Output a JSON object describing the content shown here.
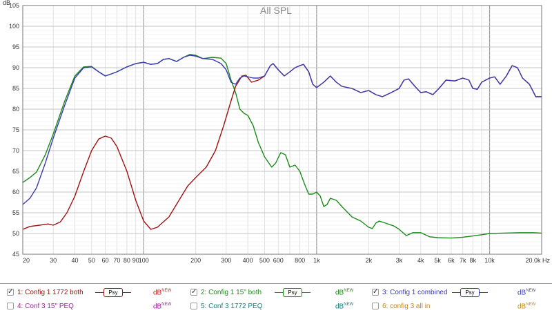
{
  "chart_data": {
    "type": "line",
    "title": "All SPL",
    "ylabel": "dB",
    "xlabel": "Hz",
    "x_scale": "log",
    "xlim": [
      20,
      20000
    ],
    "ylim": [
      45,
      105
    ],
    "x_ticks": [
      {
        "v": 20,
        "t": "20"
      },
      {
        "v": 30,
        "t": "30"
      },
      {
        "v": 40,
        "t": "40"
      },
      {
        "v": 50,
        "t": "50"
      },
      {
        "v": 60,
        "t": "60"
      },
      {
        "v": 70,
        "t": "70"
      },
      {
        "v": 80,
        "t": "80"
      },
      {
        "v": 90,
        "t": "90"
      },
      {
        "v": 100,
        "t": "100"
      },
      {
        "v": 200,
        "t": "200"
      },
      {
        "v": 300,
        "t": "300"
      },
      {
        "v": 400,
        "t": "400"
      },
      {
        "v": 500,
        "t": "500"
      },
      {
        "v": 600,
        "t": "600"
      },
      {
        "v": 800,
        "t": "800"
      },
      {
        "v": 1000,
        "t": "1k"
      },
      {
        "v": 2000,
        "t": "2k"
      },
      {
        "v": 3000,
        "t": "3k"
      },
      {
        "v": 4000,
        "t": "4k"
      },
      {
        "v": 5000,
        "t": "5k"
      },
      {
        "v": 6000,
        "t": "6k"
      },
      {
        "v": 7000,
        "t": "7k"
      },
      {
        "v": 8000,
        "t": "8k"
      },
      {
        "v": 10000,
        "t": "10k"
      },
      {
        "v": 20000,
        "t": "20.0k Hz"
      }
    ],
    "y_ticks": [
      "45",
      "50",
      "55",
      "60",
      "65",
      "70",
      "75",
      "80",
      "85",
      "90",
      "95",
      "100",
      "105"
    ],
    "grid": true,
    "series": [
      {
        "name": "Config 1 1772 both",
        "color": "#a01010",
        "points": [
          [
            20,
            51.0
          ],
          [
            22,
            51.7
          ],
          [
            25,
            52.0
          ],
          [
            28,
            52.3
          ],
          [
            30,
            52.0
          ],
          [
            33,
            52.8
          ],
          [
            36,
            55
          ],
          [
            40,
            59
          ],
          [
            45,
            65
          ],
          [
            50,
            70
          ],
          [
            55,
            72.8
          ],
          [
            60,
            73.5
          ],
          [
            65,
            73
          ],
          [
            70,
            71
          ],
          [
            80,
            65
          ],
          [
            90,
            58
          ],
          [
            100,
            53
          ],
          [
            110,
            51
          ],
          [
            120,
            51.5
          ],
          [
            140,
            54
          ],
          [
            160,
            58
          ],
          [
            180,
            61.5
          ],
          [
            200,
            63.5
          ],
          [
            230,
            66
          ],
          [
            260,
            70
          ],
          [
            290,
            76
          ],
          [
            320,
            82
          ],
          [
            340,
            85.5
          ],
          [
            370,
            88
          ],
          [
            390,
            88.2
          ],
          [
            420,
            86.5
          ],
          [
            460,
            87
          ],
          [
            500,
            88
          ],
          [
            540,
            90.5
          ],
          [
            560,
            91
          ],
          [
            600,
            89.5
          ],
          [
            650,
            88
          ],
          [
            700,
            89
          ],
          [
            750,
            90
          ],
          [
            800,
            90.5
          ],
          [
            840,
            90.8
          ],
          [
            900,
            89
          ],
          [
            950,
            86
          ],
          [
            1000,
            85.2
          ],
          [
            1100,
            86.5
          ],
          [
            1200,
            88
          ],
          [
            1300,
            86.5
          ],
          [
            1400,
            85.5
          ],
          [
            1600,
            85
          ],
          [
            1800,
            84
          ],
          [
            2000,
            84.5
          ],
          [
            2200,
            83.5
          ],
          [
            2400,
            83
          ],
          [
            2700,
            84
          ],
          [
            3000,
            85
          ],
          [
            3200,
            87
          ],
          [
            3400,
            87.3
          ],
          [
            3700,
            85.5
          ],
          [
            4000,
            84
          ],
          [
            4300,
            84.2
          ],
          [
            4700,
            83.5
          ],
          [
            5100,
            85
          ],
          [
            5600,
            87
          ],
          [
            6300,
            86.8
          ],
          [
            7000,
            87.5
          ],
          [
            7600,
            87
          ],
          [
            8000,
            85
          ],
          [
            8500,
            84.8
          ],
          [
            9000,
            86.5
          ],
          [
            10000,
            87.5
          ],
          [
            10700,
            87.8
          ],
          [
            11500,
            86
          ],
          [
            12500,
            88
          ],
          [
            13500,
            90.5
          ],
          [
            14500,
            90
          ],
          [
            15500,
            87.5
          ],
          [
            17000,
            86
          ],
          [
            18500,
            83
          ],
          [
            20000,
            83
          ]
        ]
      },
      {
        "name": "Config 1 15\" both",
        "color": "#1a8a1a",
        "points": [
          [
            20,
            62.3
          ],
          [
            22,
            63.5
          ],
          [
            24,
            64.8
          ],
          [
            27,
            69
          ],
          [
            30,
            74
          ],
          [
            35,
            82
          ],
          [
            40,
            88
          ],
          [
            45,
            90.2
          ],
          [
            50,
            90.3
          ],
          [
            55,
            89
          ],
          [
            60,
            88
          ],
          [
            65,
            88.5
          ],
          [
            70,
            89
          ],
          [
            80,
            90.2
          ],
          [
            90,
            91
          ],
          [
            100,
            91.3
          ],
          [
            110,
            90.8
          ],
          [
            120,
            91
          ],
          [
            130,
            92
          ],
          [
            140,
            92.2
          ],
          [
            155,
            91.5
          ],
          [
            170,
            92.5
          ],
          [
            185,
            93.2
          ],
          [
            200,
            93
          ],
          [
            220,
            92.2
          ],
          [
            250,
            92.5
          ],
          [
            280,
            92.3
          ],
          [
            300,
            91
          ],
          [
            320,
            87
          ],
          [
            340,
            84
          ],
          [
            360,
            80
          ],
          [
            380,
            79
          ],
          [
            400,
            78.5
          ],
          [
            430,
            76
          ],
          [
            460,
            72
          ],
          [
            500,
            68.5
          ],
          [
            550,
            66
          ],
          [
            580,
            67
          ],
          [
            620,
            69.5
          ],
          [
            660,
            69
          ],
          [
            700,
            66
          ],
          [
            750,
            66.5
          ],
          [
            800,
            65
          ],
          [
            850,
            62
          ],
          [
            900,
            59.5
          ],
          [
            950,
            59.5
          ],
          [
            1000,
            60
          ],
          [
            1050,
            59
          ],
          [
            1100,
            56.5
          ],
          [
            1150,
            57
          ],
          [
            1200,
            58.5
          ],
          [
            1300,
            58
          ],
          [
            1400,
            56.5
          ],
          [
            1600,
            54
          ],
          [
            1800,
            53
          ],
          [
            2000,
            51.5
          ],
          [
            2100,
            51.2
          ],
          [
            2200,
            52.5
          ],
          [
            2300,
            53
          ],
          [
            2500,
            52.5
          ],
          [
            2800,
            51.8
          ],
          [
            3000,
            51
          ],
          [
            3300,
            49.5
          ],
          [
            3600,
            50.2
          ],
          [
            4000,
            50.2
          ],
          [
            4500,
            49.2
          ],
          [
            5000,
            49
          ],
          [
            6000,
            48.9
          ],
          [
            7000,
            49.1
          ],
          [
            8000,
            49.4
          ],
          [
            9000,
            49.7
          ],
          [
            10000,
            50
          ],
          [
            12000,
            50.1
          ],
          [
            15000,
            50.2
          ],
          [
            18000,
            50.2
          ],
          [
            20000,
            50.1
          ]
        ]
      },
      {
        "name": "Config 1 combined",
        "color": "#3a3ab0",
        "points": [
          [
            20,
            57
          ],
          [
            22,
            58.5
          ],
          [
            24,
            61
          ],
          [
            27,
            67
          ],
          [
            30,
            73
          ],
          [
            35,
            81
          ],
          [
            40,
            87.5
          ],
          [
            45,
            90
          ],
          [
            50,
            90.2
          ],
          [
            55,
            89
          ],
          [
            60,
            88
          ],
          [
            65,
            88.5
          ],
          [
            70,
            89
          ],
          [
            80,
            90.2
          ],
          [
            90,
            91
          ],
          [
            100,
            91.3
          ],
          [
            110,
            90.8
          ],
          [
            120,
            91
          ],
          [
            130,
            92
          ],
          [
            140,
            92.2
          ],
          [
            155,
            91.5
          ],
          [
            170,
            92.5
          ],
          [
            185,
            93
          ],
          [
            200,
            92.8
          ],
          [
            220,
            92.2
          ],
          [
            250,
            92
          ],
          [
            280,
            91
          ],
          [
            300,
            89.5
          ],
          [
            320,
            86.5
          ],
          [
            340,
            86
          ],
          [
            360,
            87.5
          ],
          [
            380,
            88
          ],
          [
            400,
            87.8
          ],
          [
            430,
            87.5
          ],
          [
            460,
            87.5
          ],
          [
            500,
            88
          ],
          [
            540,
            90.5
          ],
          [
            560,
            91
          ],
          [
            600,
            89.5
          ],
          [
            650,
            88
          ],
          [
            700,
            89
          ],
          [
            750,
            90
          ],
          [
            800,
            90.5
          ],
          [
            840,
            90.8
          ],
          [
            900,
            89
          ],
          [
            950,
            86
          ],
          [
            1000,
            85.2
          ],
          [
            1100,
            86.5
          ],
          [
            1200,
            88
          ],
          [
            1300,
            86.5
          ],
          [
            1400,
            85.5
          ],
          [
            1600,
            85
          ],
          [
            1800,
            84
          ],
          [
            2000,
            84.5
          ],
          [
            2200,
            83.5
          ],
          [
            2400,
            83
          ],
          [
            2700,
            84
          ],
          [
            3000,
            85
          ],
          [
            3200,
            87
          ],
          [
            3400,
            87.3
          ],
          [
            3700,
            85.5
          ],
          [
            4000,
            84
          ],
          [
            4300,
            84.2
          ],
          [
            4700,
            83.5
          ],
          [
            5100,
            85
          ],
          [
            5600,
            87
          ],
          [
            6300,
            86.8
          ],
          [
            7000,
            87.5
          ],
          [
            7600,
            87
          ],
          [
            8000,
            85
          ],
          [
            8500,
            84.8
          ],
          [
            9000,
            86.5
          ],
          [
            10000,
            87.5
          ],
          [
            10700,
            87.8
          ],
          [
            11500,
            86
          ],
          [
            12500,
            88
          ],
          [
            13500,
            90.5
          ],
          [
            14500,
            90
          ],
          [
            15500,
            87.5
          ],
          [
            17000,
            86
          ],
          [
            18500,
            83
          ],
          [
            20000,
            83
          ]
        ]
      }
    ]
  },
  "legend": [
    {
      "num": "1:",
      "name": "Config 1 1772 both",
      "checked": true,
      "color": "#a01010",
      "psy": "Psy",
      "db": "dB",
      "sup": "NEW",
      "db_color": "#cc2222"
    },
    {
      "num": "2:",
      "name": "Config 1 15\" both",
      "checked": true,
      "color": "#1a8a1a",
      "psy": "Psy",
      "db": "dB",
      "sup": "NEW",
      "db_color": "#1a8a1a"
    },
    {
      "num": "3:",
      "name": "Config 1 combined",
      "checked": true,
      "color": "#3a3ab0",
      "psy": "Psy",
      "db": "dB",
      "sup": "NEW",
      "db_color": "#3a3ab0"
    },
    {
      "num": "4:",
      "name": "Conf 3 15\" PEQ",
      "checked": false,
      "color": "#a020a0",
      "db": "dB",
      "sup": "NEW",
      "db_color": "#a020a0"
    },
    {
      "num": "5:",
      "name": "Conf 3 1772 PEQ",
      "checked": false,
      "color": "#108080",
      "db": "dB",
      "sup": "NEW",
      "db_color": "#108080"
    },
    {
      "num": "6:",
      "name": "config 3 all in",
      "checked": false,
      "color": "#c08a10",
      "db": "dB",
      "sup": "NEW",
      "db_color": "#c08a10"
    }
  ]
}
